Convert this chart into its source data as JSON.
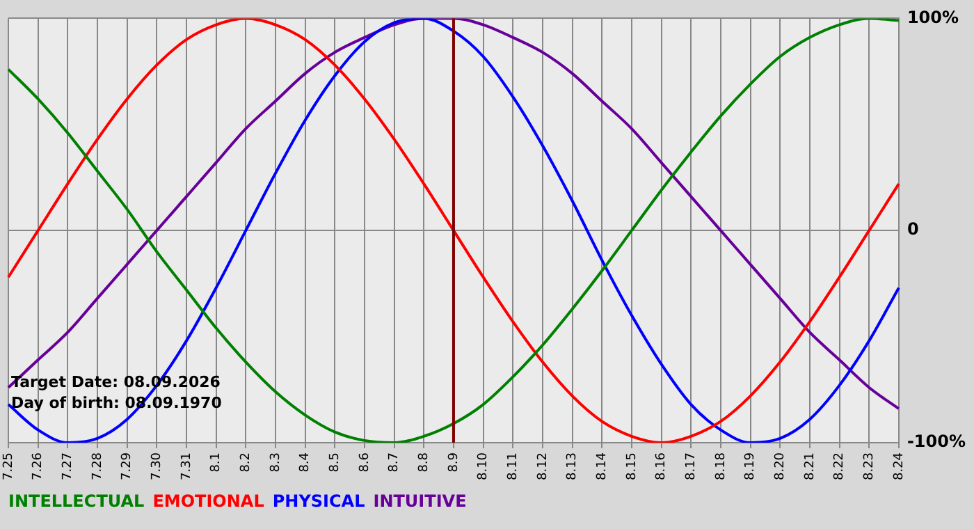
{
  "chart_data": {
    "type": "line",
    "categories": [
      "7.25",
      "7.26",
      "7.27",
      "7.28",
      "7.29",
      "7.30",
      "7.31",
      "8.1",
      "8.2",
      "8.3",
      "8.4",
      "8.5",
      "8.6",
      "8.7",
      "8.8",
      "8.9",
      "8.10",
      "8.11",
      "8.12",
      "8.13",
      "8.14",
      "8.15",
      "8.16",
      "8.17",
      "8.18",
      "8.19",
      "8.20",
      "8.21",
      "8.22",
      "8.23",
      "8.24"
    ],
    "series": [
      {
        "name": "INTELLECTUAL",
        "color": "#008000",
        "values": [
          76,
          62,
          46,
          28,
          10,
          -10,
          -28,
          -46,
          -62,
          -76,
          -87,
          -95,
          -99,
          -100,
          -97,
          -91,
          -82,
          -69,
          -54,
          -37,
          -19,
          0,
          19,
          37,
          54,
          69,
          82,
          91,
          97,
          100,
          99
        ]
      },
      {
        "name": "EMOTIONAL",
        "color": "#ff0000",
        "values": [
          -22,
          0,
          22,
          43,
          62,
          78,
          90,
          97,
          100,
          97,
          90,
          78,
          62,
          43,
          22,
          0,
          -22,
          -43,
          -62,
          -78,
          -90,
          -97,
          -100,
          -97,
          -90,
          -78,
          -62,
          -43,
          -22,
          0,
          22
        ]
      },
      {
        "name": "PHYSICAL",
        "color": "#0000ff",
        "values": [
          -82,
          -94,
          -100,
          -98,
          -89,
          -73,
          -52,
          -27,
          0,
          27,
          52,
          73,
          89,
          98,
          100,
          94,
          82,
          63,
          40,
          14,
          -14,
          -40,
          -63,
          -82,
          -94,
          -100,
          -98,
          -89,
          -73,
          -52,
          -27
        ]
      },
      {
        "name": "INTUITIVE",
        "color": "#660099",
        "values": [
          -74,
          -61,
          -48,
          -32,
          -16,
          0,
          16,
          32,
          48,
          61,
          74,
          84,
          91,
          97,
          100,
          100,
          97,
          91,
          84,
          74,
          61,
          48,
          32,
          16,
          0,
          -16,
          -32,
          -48,
          -61,
          -74,
          -84
        ]
      }
    ],
    "ylim": [
      -100,
      100
    ],
    "yticks": [
      {
        "value": -100,
        "label": "-100%"
      },
      0,
      {
        "value": 100,
        "label": "100%"
      }
    ],
    "grid": true,
    "legend": "bottom left",
    "marker": "none",
    "ref_lines": [
      {
        "axis": "x",
        "value": "8.9",
        "color": "#800000"
      }
    ],
    "annotations": [
      "Target Date: 08.09.2026",
      "Day of birth: 08.09.1970"
    ]
  }
}
